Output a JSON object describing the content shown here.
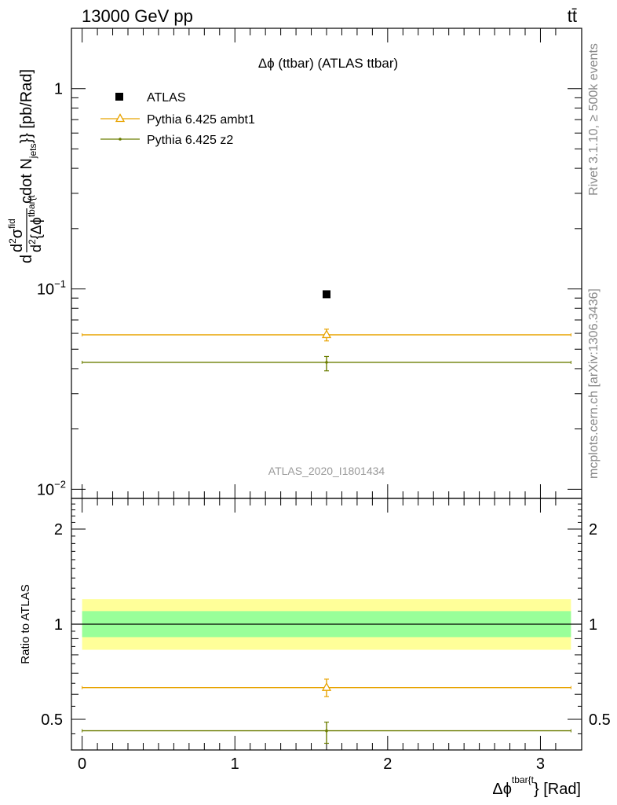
{
  "header": {
    "energy_label": "13000 GeV pp",
    "process_label": "tt̄"
  },
  "side_labels": {
    "rivet": "Rivet 3.1.10, ≥ 500k events",
    "source": "mcplots.cern.ch [arXiv:1306.3436]"
  },
  "chart_data": [
    {
      "type": "scatter",
      "title": "Δϕ (ttbar) (ATLAS ttbar)",
      "analysis_label": "ATLAS_2020_I1801434",
      "ylabel_parts": {
        "d": "d",
        "num": "d",
        "num_sup": "2",
        "sigma": "σ",
        "sigma_sup": "fid",
        "den": "d",
        "den_sup": "2",
        "den_rest": "{Δϕ",
        "den_sup2": "tbar{t",
        "rest": "cdot N",
        "rest_sub": "jets",
        "units": "}} [pb/Rad]"
      },
      "yscale": "log",
      "ylim": [
        0.009,
        2
      ],
      "xlim": [
        -0.07,
        3.27
      ],
      "yticks": [
        {
          "value": 1,
          "label": "1"
        },
        {
          "value": 0.1,
          "label": "10",
          "sup": "−1"
        },
        {
          "value": 0.01,
          "label": "10",
          "sup": "−2"
        }
      ],
      "legend": {
        "position": "top-left",
        "entries": [
          {
            "label": "ATLAS",
            "color": "#000000",
            "marker": "square"
          },
          {
            "label": "Pythia 6.425 ambt1",
            "color": "#e8a300",
            "marker": "open-triangle"
          },
          {
            "label": "Pythia 6.425 z2",
            "color": "#6b7d00",
            "marker": "dot"
          }
        ]
      },
      "series": [
        {
          "name": "ATLAS",
          "color": "#000000",
          "marker": "square",
          "points": [
            {
              "x": 1.6,
              "y": 0.094
            }
          ]
        },
        {
          "name": "Pythia 6.425 ambt1",
          "color": "#e8a300",
          "marker": "open-triangle",
          "points": [
            {
              "x": 1.6,
              "xlow": 0.0,
              "xhigh": 3.2,
              "y": 0.059,
              "ylow": 0.055,
              "yhigh": 0.063
            }
          ]
        },
        {
          "name": "Pythia 6.425 z2",
          "color": "#6b7d00",
          "marker": "dot",
          "points": [
            {
              "x": 1.6,
              "xlow": 0.0,
              "xhigh": 3.2,
              "y": 0.043,
              "ylow": 0.039,
              "yhigh": 0.046
            }
          ]
        }
      ]
    },
    {
      "type": "scatter",
      "ylabel": "Ratio to ATLAS",
      "xlabel_parts": {
        "main": "Δϕ",
        "sup": "tbar{t",
        "rest": "} [Rad]"
      },
      "yscale": "log",
      "ylim": [
        0.4,
        2.5
      ],
      "xlim": [
        -0.07,
        3.27
      ],
      "xticks": [
        0,
        1,
        2,
        3
      ],
      "yticks": [
        {
          "value": 2,
          "label": "2"
        },
        {
          "value": 1,
          "label": "1"
        },
        {
          "value": 0.5,
          "label": "0.5"
        }
      ],
      "bands": [
        {
          "name": "ATLAS total uncertainty",
          "low": 0.83,
          "high": 1.2,
          "color": "#ffff99"
        },
        {
          "name": "ATLAS stat uncertainty",
          "low": 0.91,
          "high": 1.1,
          "color": "#99ff99"
        }
      ],
      "reference_line": 1,
      "series": [
        {
          "name": "Pythia 6.425 ambt1",
          "color": "#e8a300",
          "marker": "open-triangle",
          "points": [
            {
              "x": 1.6,
              "xlow": 0.0,
              "xhigh": 3.2,
              "y": 0.63,
              "ylow": 0.59,
              "yhigh": 0.67
            }
          ]
        },
        {
          "name": "Pythia 6.425 z2",
          "color": "#6b7d00",
          "marker": "dot",
          "points": [
            {
              "x": 1.6,
              "xlow": 0.0,
              "xhigh": 3.2,
              "y": 0.46,
              "ylow": 0.42,
              "yhigh": 0.49
            }
          ]
        }
      ]
    }
  ]
}
